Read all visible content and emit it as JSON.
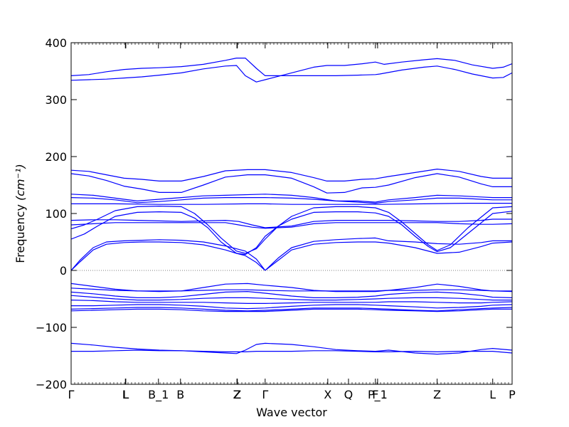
{
  "chart_data": {
    "type": "line",
    "title": "",
    "xlabel": "Wave vector",
    "ylabel": "Frequency",
    "ylabel_unit": "(cm⁻¹)",
    "ylim": [
      -200,
      400
    ],
    "yticks": [
      -200,
      -100,
      0,
      100,
      200,
      300,
      400
    ],
    "xlim": [
      0,
      1
    ],
    "grid": false,
    "line_color": "#0000ff",
    "zero_line_color": "#555555",
    "high_symmetry_points": [
      {
        "label": "Γ",
        "x": 0.0
      },
      {
        "label": "L",
        "x": 0.123
      },
      {
        "label": "L",
        "x": 0.124
      },
      {
        "label": "B_1",
        "x": 0.198
      },
      {
        "label": "B",
        "x": 0.248
      },
      {
        "label": "Z",
        "x": 0.376
      },
      {
        "label": "Z",
        "x": 0.377
      },
      {
        "label": "Γ",
        "x": 0.44
      },
      {
        "label": "X",
        "x": 0.582
      },
      {
        "label": "Q",
        "x": 0.629
      },
      {
        "label": "F",
        "x": 0.69
      },
      {
        "label": "P_1",
        "x": 0.695
      },
      {
        "label": "Z",
        "x": 0.83
      },
      {
        "label": "L",
        "x": 0.956
      },
      {
        "label": "P",
        "x": 1.0
      }
    ],
    "series": [
      {
        "x": [
          0,
          0.04,
          0.08,
          0.12,
          0.16,
          0.2,
          0.25,
          0.3,
          0.35,
          0.375,
          0.395,
          0.42,
          0.44,
          0.5,
          0.55,
          0.6,
          0.65,
          0.69,
          0.7,
          0.75,
          0.8,
          0.83,
          0.87,
          0.91,
          0.956,
          0.98,
          1.0
        ],
        "values": [
          342,
          344,
          349,
          353,
          355,
          356,
          358,
          362,
          369,
          373,
          373,
          355,
          342,
          342,
          342,
          342,
          343,
          344,
          345,
          352,
          357,
          359,
          353,
          345,
          338,
          339,
          347
        ]
      },
      {
        "x": [
          0,
          0.04,
          0.08,
          0.12,
          0.16,
          0.2,
          0.25,
          0.3,
          0.35,
          0.375,
          0.395,
          0.42,
          0.44,
          0.5,
          0.55,
          0.58,
          0.62,
          0.66,
          0.69,
          0.71,
          0.75,
          0.8,
          0.83,
          0.87,
          0.91,
          0.956,
          0.98,
          1.0
        ],
        "values": [
          334,
          335,
          336,
          338,
          340,
          343,
          347,
          354,
          359,
          360,
          342,
          331,
          335,
          347,
          357,
          360,
          360,
          363,
          366,
          362,
          366,
          370,
          372,
          369,
          361,
          355,
          357,
          363
        ]
      },
      {
        "x": [
          0,
          0.04,
          0.08,
          0.12,
          0.16,
          0.2,
          0.25,
          0.3,
          0.35,
          0.4,
          0.44,
          0.5,
          0.55,
          0.58,
          0.62,
          0.66,
          0.69,
          0.72,
          0.78,
          0.83,
          0.88,
          0.93,
          0.956,
          1.0
        ],
        "values": [
          176,
          174,
          168,
          162,
          160,
          157,
          157,
          165,
          175,
          177,
          177,
          172,
          163,
          157,
          157,
          160,
          161,
          165,
          172,
          178,
          174,
          165,
          162,
          162
        ]
      },
      {
        "x": [
          0,
          0.04,
          0.08,
          0.12,
          0.16,
          0.2,
          0.25,
          0.3,
          0.35,
          0.4,
          0.44,
          0.5,
          0.55,
          0.58,
          0.62,
          0.66,
          0.69,
          0.72,
          0.78,
          0.83,
          0.88,
          0.93,
          0.956,
          1.0
        ],
        "values": [
          170,
          166,
          158,
          148,
          143,
          137,
          137,
          150,
          164,
          168,
          168,
          162,
          147,
          136,
          137,
          145,
          146,
          150,
          163,
          170,
          164,
          152,
          147,
          147
        ]
      },
      {
        "x": [
          0,
          0.05,
          0.1,
          0.15,
          0.2,
          0.25,
          0.3,
          0.35,
          0.44,
          0.5,
          0.55,
          0.6,
          0.65,
          0.69,
          0.72,
          0.78,
          0.83,
          0.88,
          0.93,
          0.956,
          1.0
        ],
        "values": [
          134,
          132,
          127,
          122,
          125,
          128,
          131,
          132,
          134,
          132,
          128,
          122,
          122,
          120,
          124,
          128,
          132,
          131,
          129,
          128,
          128
        ]
      },
      {
        "x": [
          0,
          0.05,
          0.1,
          0.15,
          0.2,
          0.25,
          0.3,
          0.35,
          0.44,
          0.5,
          0.55,
          0.6,
          0.65,
          0.69,
          0.72,
          0.78,
          0.83,
          0.88,
          0.93,
          0.956,
          1.0
        ],
        "values": [
          128,
          127,
          124,
          119,
          121,
          124,
          127,
          128,
          128,
          127,
          125,
          122,
          120,
          118,
          121,
          124,
          127,
          127,
          125,
          124,
          124
        ]
      },
      {
        "x": [
          0,
          0.1,
          0.2,
          0.3,
          0.4,
          0.44,
          0.5,
          0.6,
          0.7,
          0.8,
          0.9,
          1.0
        ],
        "values": [
          117,
          117,
          116,
          116,
          117,
          117,
          116,
          116,
          116,
          117,
          118,
          118
        ]
      },
      {
        "x": [
          0,
          0.05,
          0.1,
          0.15,
          0.2,
          0.25,
          0.3,
          0.35,
          0.38,
          0.41,
          0.44,
          0.5,
          0.55,
          0.6,
          0.65,
          0.69,
          0.72,
          0.78,
          0.83,
          0.88,
          0.93,
          0.956,
          1.0
        ],
        "values": [
          88,
          89,
          89,
          88,
          87,
          86,
          87,
          88,
          86,
          80,
          75,
          78,
          86,
          88,
          88,
          88,
          88,
          87,
          86,
          86,
          88,
          90,
          90
        ]
      },
      {
        "x": [
          0,
          0.05,
          0.1,
          0.15,
          0.2,
          0.25,
          0.3,
          0.35,
          0.38,
          0.41,
          0.44,
          0.5,
          0.55,
          0.6,
          0.65,
          0.69,
          0.72,
          0.78,
          0.83,
          0.88,
          0.93,
          0.956,
          1.0
        ],
        "values": [
          80,
          82,
          84,
          84,
          84,
          84,
          84,
          84,
          80,
          76,
          74,
          76,
          82,
          84,
          84,
          84,
          84,
          84,
          84,
          82,
          81,
          81,
          82
        ]
      },
      {
        "x": [
          0,
          0.03,
          0.06,
          0.1,
          0.15,
          0.2,
          0.25,
          0.28,
          0.31,
          0.34,
          0.375,
          0.395,
          0.42,
          0.44,
          0.47,
          0.5,
          0.55,
          0.6,
          0.65,
          0.69,
          0.72,
          0.75,
          0.78,
          0.81,
          0.83,
          0.86,
          0.9,
          0.956,
          1.0
        ],
        "values": [
          73,
          80,
          90,
          105,
          112,
          113,
          112,
          100,
          80,
          57,
          34,
          30,
          38,
          55,
          78,
          95,
          110,
          112,
          112,
          110,
          102,
          85,
          65,
          45,
          35,
          45,
          75,
          110,
          112
        ]
      },
      {
        "x": [
          0,
          0.03,
          0.06,
          0.1,
          0.15,
          0.2,
          0.25,
          0.28,
          0.31,
          0.34,
          0.375,
          0.395,
          0.42,
          0.44,
          0.47,
          0.5,
          0.55,
          0.6,
          0.65,
          0.69,
          0.72,
          0.75,
          0.78,
          0.81,
          0.83,
          0.86,
          0.9,
          0.956,
          1.0
        ],
        "values": [
          55,
          64,
          78,
          95,
          102,
          103,
          102,
          92,
          75,
          50,
          30,
          28,
          40,
          60,
          78,
          90,
          102,
          103,
          103,
          101,
          95,
          80,
          60,
          42,
          33,
          40,
          65,
          100,
          104
        ]
      },
      {
        "x": [
          0,
          0.02,
          0.05,
          0.08,
          0.12,
          0.16,
          0.2,
          0.25,
          0.3,
          0.35,
          0.375,
          0.395,
          0.42,
          0.44
        ],
        "values": [
          0,
          18,
          40,
          50,
          52,
          53,
          54,
          53,
          50,
          43,
          38,
          34,
          20,
          0
        ]
      },
      {
        "x": [
          0,
          0.02,
          0.05,
          0.08,
          0.12,
          0.16,
          0.2,
          0.25,
          0.3,
          0.35,
          0.375,
          0.395,
          0.42,
          0.44
        ],
        "values": [
          0,
          15,
          36,
          46,
          49,
          50,
          50,
          49,
          45,
          36,
          30,
          26,
          14,
          0
        ]
      },
      {
        "x": [
          0.44,
          0.47,
          0.5,
          0.55,
          0.6,
          0.65,
          0.69,
          0.72,
          0.78,
          0.83,
          0.88,
          0.93,
          0.956,
          1.0
        ],
        "values": [
          0,
          22,
          40,
          51,
          54,
          56,
          57,
          52,
          50,
          47,
          46,
          49,
          52,
          52
        ]
      },
      {
        "x": [
          0.44,
          0.47,
          0.5,
          0.55,
          0.6,
          0.65,
          0.69,
          0.72,
          0.78,
          0.83,
          0.88,
          0.93,
          0.956,
          1.0
        ],
        "values": [
          0,
          18,
          36,
          46,
          49,
          50,
          50,
          48,
          40,
          30,
          32,
          42,
          48,
          50
        ]
      },
      {
        "x": [
          0,
          0.05,
          0.1,
          0.15,
          0.2,
          0.25,
          0.3,
          0.35,
          0.4,
          0.44,
          0.5,
          0.55,
          0.6,
          0.65,
          0.69,
          0.72,
          0.78,
          0.83,
          0.88,
          0.93,
          0.956,
          1.0
        ],
        "values": [
          -23,
          -28,
          -33,
          -36,
          -37,
          -36,
          -30,
          -24,
          -23,
          -26,
          -30,
          -35,
          -37,
          -37,
          -37,
          -35,
          -30,
          -24,
          -28,
          -34,
          -36,
          -36
        ]
      },
      {
        "x": [
          0,
          0.05,
          0.1,
          0.15,
          0.2,
          0.25,
          0.3,
          0.35,
          0.4,
          0.44,
          0.5,
          0.55,
          0.6,
          0.65,
          0.69,
          0.72,
          0.78,
          0.83,
          0.88,
          0.93,
          0.956,
          1.0
        ],
        "values": [
          -31,
          -33,
          -35,
          -36,
          -36,
          -36,
          -35,
          -34,
          -34,
          -35,
          -36,
          -36,
          -36,
          -36,
          -36,
          -35,
          -35,
          -34,
          -34,
          -35,
          -36,
          -37
        ]
      },
      {
        "x": [
          0,
          0.05,
          0.1,
          0.15,
          0.2,
          0.25,
          0.3,
          0.35,
          0.4,
          0.44,
          0.5,
          0.55,
          0.6,
          0.65,
          0.69,
          0.72,
          0.78,
          0.83,
          0.88,
          0.93,
          0.956,
          1.0
        ],
        "values": [
          -38,
          -41,
          -45,
          -48,
          -48,
          -46,
          -42,
          -38,
          -37,
          -40,
          -45,
          -48,
          -48,
          -47,
          -45,
          -42,
          -39,
          -38,
          -40,
          -44,
          -47,
          -48
        ]
      },
      {
        "x": [
          0,
          0.05,
          0.1,
          0.15,
          0.2,
          0.25,
          0.3,
          0.35,
          0.4,
          0.44,
          0.5,
          0.55,
          0.6,
          0.65,
          0.69,
          0.72,
          0.78,
          0.83,
          0.88,
          0.93,
          0.956,
          1.0
        ],
        "values": [
          -44,
          -47,
          -50,
          -52,
          -52,
          -51,
          -49,
          -48,
          -48,
          -49,
          -51,
          -52,
          -52,
          -51,
          -50,
          -49,
          -48,
          -48,
          -49,
          -51,
          -52,
          -52
        ]
      },
      {
        "x": [
          0,
          0.05,
          0.1,
          0.15,
          0.2,
          0.25,
          0.3,
          0.35,
          0.4,
          0.44,
          0.5,
          0.55,
          0.6,
          0.65,
          0.69,
          0.72,
          0.78,
          0.83,
          0.88,
          0.93,
          0.956,
          1.0
        ],
        "values": [
          -52,
          -53,
          -55,
          -56,
          -56,
          -56,
          -56,
          -57,
          -58,
          -58,
          -57,
          -56,
          -56,
          -56,
          -56,
          -55,
          -55,
          -56,
          -57,
          -57,
          -56,
          -55
        ]
      },
      {
        "x": [
          0,
          0.05,
          0.1,
          0.15,
          0.2,
          0.25,
          0.3,
          0.35,
          0.4,
          0.44,
          0.5,
          0.55,
          0.6,
          0.65,
          0.69,
          0.72,
          0.78,
          0.83,
          0.88,
          0.93,
          0.956,
          1.0
        ],
        "values": [
          -62,
          -62,
          -61,
          -60,
          -60,
          -61,
          -63,
          -66,
          -67,
          -66,
          -63,
          -61,
          -60,
          -60,
          -61,
          -62,
          -64,
          -66,
          -65,
          -63,
          -61,
          -60
        ]
      },
      {
        "x": [
          0,
          0.05,
          0.1,
          0.15,
          0.2,
          0.25,
          0.3,
          0.35,
          0.4,
          0.44,
          0.5,
          0.55,
          0.6,
          0.65,
          0.69,
          0.72,
          0.78,
          0.83,
          0.88,
          0.93,
          0.956,
          1.0
        ],
        "values": [
          -68,
          -67,
          -66,
          -65,
          -65,
          -66,
          -68,
          -70,
          -71,
          -70,
          -68,
          -66,
          -66,
          -66,
          -67,
          -68,
          -70,
          -71,
          -69,
          -67,
          -66,
          -65
        ]
      },
      {
        "x": [
          0,
          0.05,
          0.1,
          0.15,
          0.2,
          0.25,
          0.3,
          0.35,
          0.4,
          0.44,
          0.5,
          0.55,
          0.6,
          0.65,
          0.69,
          0.72,
          0.78,
          0.83,
          0.88,
          0.93,
          0.956,
          1.0
        ],
        "values": [
          -71,
          -70,
          -69,
          -68,
          -68,
          -69,
          -71,
          -72,
          -72,
          -72,
          -70,
          -68,
          -68,
          -68,
          -69,
          -70,
          -71,
          -72,
          -71,
          -69,
          -68,
          -68
        ]
      },
      {
        "x": [
          0,
          0.05,
          0.1,
          0.15,
          0.2,
          0.25,
          0.3,
          0.35,
          0.375,
          0.395,
          0.42,
          0.44,
          0.5,
          0.55,
          0.6,
          0.65,
          0.69,
          0.72,
          0.78,
          0.83,
          0.88,
          0.93,
          0.956,
          1.0
        ],
        "values": [
          -128,
          -131,
          -135,
          -138,
          -140,
          -141,
          -143,
          -145,
          -146,
          -140,
          -130,
          -128,
          -130,
          -134,
          -139,
          -141,
          -142,
          -140,
          -145,
          -147,
          -145,
          -139,
          -137,
          -140
        ]
      },
      {
        "x": [
          0,
          0.05,
          0.1,
          0.15,
          0.2,
          0.25,
          0.3,
          0.35,
          0.375,
          0.395,
          0.42,
          0.44,
          0.5,
          0.55,
          0.6,
          0.65,
          0.69,
          0.72,
          0.78,
          0.83,
          0.88,
          0.93,
          0.956,
          1.0
        ],
        "values": [
          -142,
          -142,
          -141,
          -140,
          -141,
          -141,
          -142,
          -143,
          -143,
          -143,
          -142,
          -142,
          -142,
          -141,
          -141,
          -142,
          -143,
          -143,
          -142,
          -143,
          -142,
          -142,
          -142,
          -145
        ]
      }
    ]
  }
}
